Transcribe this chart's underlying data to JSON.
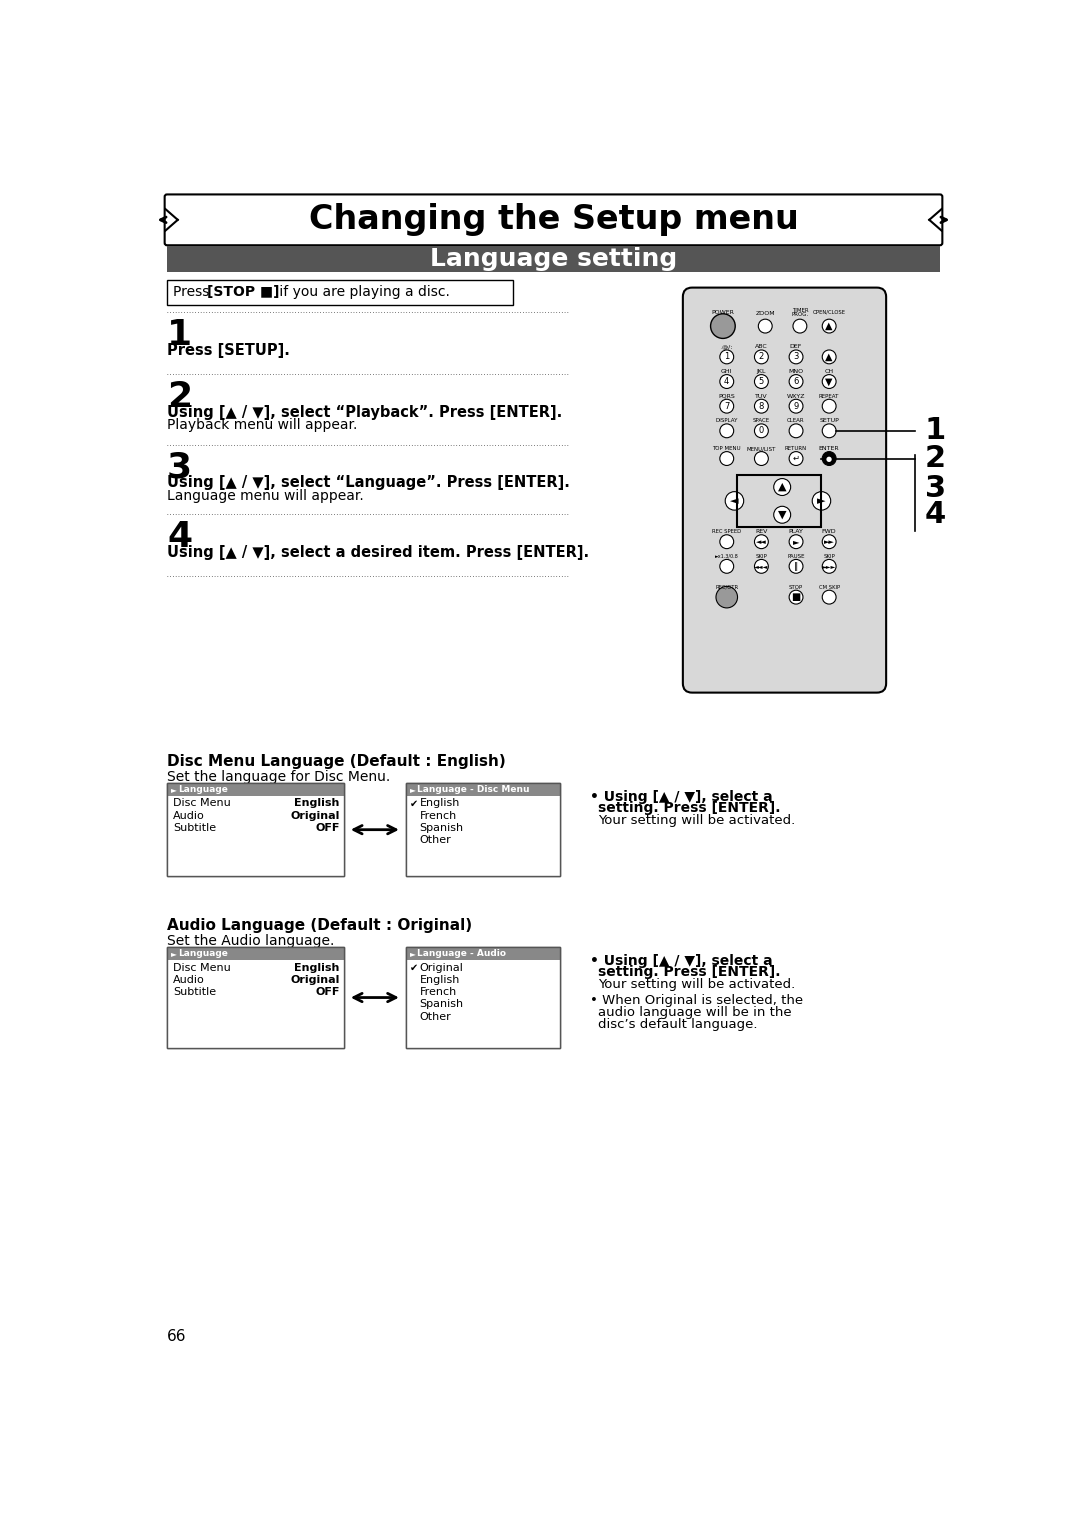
{
  "title": "Changing the Setup menu",
  "subtitle": "Language setting",
  "steps": [
    {
      "num": "1",
      "bold": "Press [SETUP].",
      "normal": ""
    },
    {
      "num": "2",
      "bold": "Using [▲ / ▼], select “Playback”. Press [ENTER].",
      "normal": "Playback menu will appear."
    },
    {
      "num": "3",
      "bold": "Using [▲ / ▼], select “Language”. Press [ENTER].",
      "normal": "Language menu will appear."
    },
    {
      "num": "4",
      "bold": "Using [▲ / ▼], select a desired item. Press [ENTER].",
      "normal": ""
    }
  ],
  "stop_text_plain": "Press  ",
  "stop_text_bold": "[STOP ■]",
  "stop_text_rest": " if you are playing a disc.",
  "s1_title": "Disc Menu Language (Default : English)",
  "s1_sub": "Set the language for Disc Menu.",
  "s1_left": {
    "title": "Language",
    "rows": [
      [
        "Disc Menu",
        "English"
      ],
      [
        "Audio",
        "Original"
      ],
      [
        "Subtitle",
        "OFF"
      ]
    ]
  },
  "s1_right": {
    "title": "Language - Disc Menu",
    "rows": [
      [
        "English",
        true
      ],
      [
        "French",
        false
      ],
      [
        "Spanish",
        false
      ],
      [
        "Other",
        false
      ]
    ]
  },
  "s1_b1a": "Using [▲ / ▼], select a",
  "s1_b1b": "setting. Press [ENTER].",
  "s1_b1c": "Your setting will be activated.",
  "s2_title": "Audio Language (Default : Original)",
  "s2_sub": "Set the Audio language.",
  "s2_left": {
    "title": "Language",
    "rows": [
      [
        "Disc Menu",
        "English"
      ],
      [
        "Audio",
        "Original"
      ],
      [
        "Subtitle",
        "OFF"
      ]
    ]
  },
  "s2_right": {
    "title": "Language - Audio",
    "rows": [
      [
        "Original",
        true
      ],
      [
        "English",
        false
      ],
      [
        "French",
        false
      ],
      [
        "Spanish",
        false
      ],
      [
        "Other",
        false
      ]
    ]
  },
  "s2_b1a": "Using [▲ / ▼], select a",
  "s2_b1b": "setting. Press [ENTER].",
  "s2_b1c": "Your setting will be activated.",
  "s2_b2a": "When Original is selected, the",
  "s2_b2b": "audio language will be in the",
  "s2_b2c": "disc’s default language.",
  "page_num": "66",
  "header_bg": "#555555",
  "header_fg": "#ffffff",
  "remote_bg": "#d8d8d8",
  "menu_title_bg": "#888888",
  "menu_body_bg": "#d0d0d0"
}
